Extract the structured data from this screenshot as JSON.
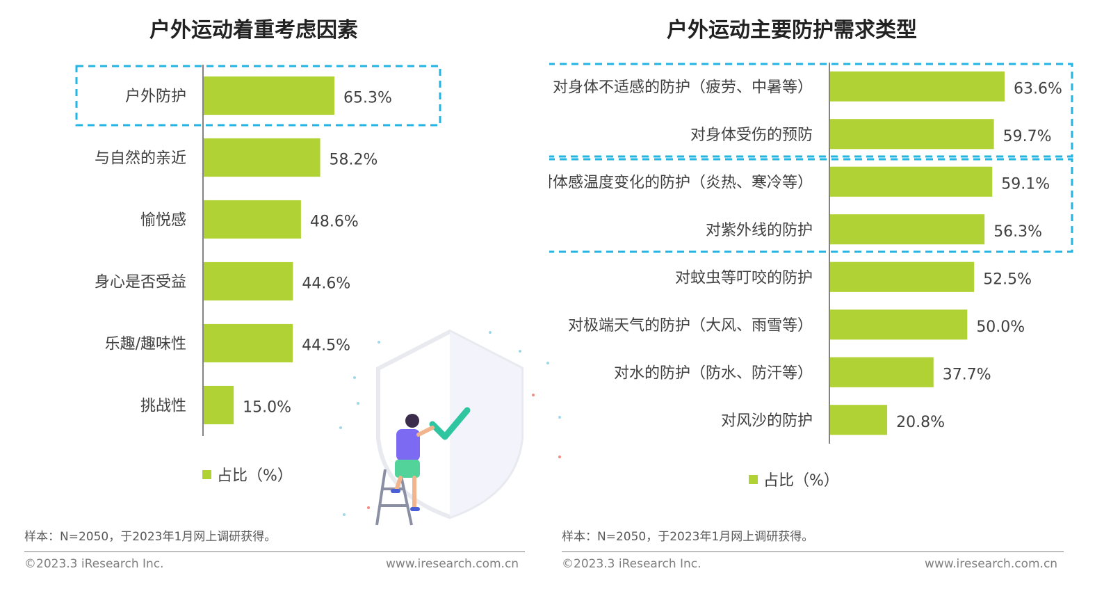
{
  "colors": {
    "bar": "#b0d235",
    "highlight": "#24b4e3",
    "axis": "#595959",
    "text": "#404040"
  },
  "left": {
    "chart_data": {
      "type": "bar",
      "orientation": "horizontal",
      "title": "户外运动着重考虑因素",
      "categories": [
        "户外防护",
        "与自然的亲近",
        "愉悦感",
        "身心是否受益",
        "乐趣/趣味性",
        "挑战性"
      ],
      "series": [
        {
          "name": "占比（%）",
          "values": [
            65.3,
            58.2,
            48.6,
            44.6,
            44.5,
            15.0
          ]
        }
      ],
      "value_labels": [
        "65.3%",
        "58.2%",
        "48.6%",
        "44.6%",
        "44.5%",
        "15.0%"
      ],
      "xlim": [
        0,
        100
      ],
      "legend": "bottom",
      "highlighted_groups": [
        [
          "户外防护"
        ]
      ]
    },
    "legend_label": "占比（%）",
    "footnote": "样本：N=2050，于2023年1月网上调研获得。",
    "copyright": "©2023.3 iResearch Inc.",
    "website": "www.iresearch.com.cn"
  },
  "right": {
    "chart_data": {
      "type": "bar",
      "orientation": "horizontal",
      "title": "户外运动主要防护需求类型",
      "categories": [
        "对身体不适感的防护（疲劳、中暑等）",
        "对身体受伤的预防",
        "对体感温度变化的防护（炎热、寒冷等）",
        "对紫外线的防护",
        "对蚊虫等叮咬的防护",
        "对极端天气的防护（大风、雨雪等）",
        "对水的防护（防水、防汗等）",
        "对风沙的防护"
      ],
      "series": [
        {
          "name": "占比（%）",
          "values": [
            63.6,
            59.7,
            59.1,
            56.3,
            52.5,
            50.0,
            37.7,
            20.8
          ]
        }
      ],
      "value_labels": [
        "63.6%",
        "59.7%",
        "59.1%",
        "56.3%",
        "52.5%",
        "50.0%",
        "37.7%",
        "20.8%"
      ],
      "xlim": [
        0,
        100
      ],
      "legend": "bottom",
      "highlighted_groups": [
        [
          "对身体不适感的防护（疲劳、中暑等）",
          "对身体受伤的预防"
        ],
        [
          "对体感温度变化的防护（炎热、寒冷等）",
          "对紫外线的防护"
        ]
      ]
    },
    "legend_label": "占比（%）",
    "footnote": "样本：N=2050，于2023年1月网上调研获得。",
    "copyright": "©2023.3 iResearch Inc.",
    "website": "www.iresearch.com.cn"
  },
  "illustration": {
    "icons": [
      "shield-icon",
      "checkmark-icon",
      "person-icon",
      "ladder-icon"
    ]
  }
}
